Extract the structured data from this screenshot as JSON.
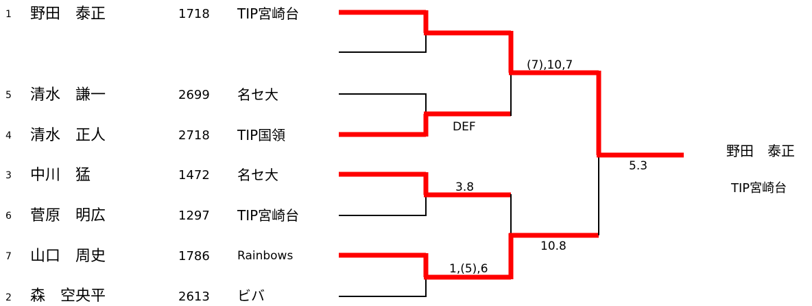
{
  "colors": {
    "win": "#ff0000",
    "line": "#000000"
  },
  "players": [
    {
      "seed": "1",
      "name": "野田　泰正",
      "rating": "1718",
      "team": "TIP宮崎台"
    },
    {
      "seed": "5",
      "name": "清水　謙一",
      "rating": "2699",
      "team": "名セ大"
    },
    {
      "seed": "4",
      "name": "清水　正人",
      "rating": "2718",
      "team": "TIP国領"
    },
    {
      "seed": "3",
      "name": "中川　猛",
      "rating": "1472",
      "team": "名セ大"
    },
    {
      "seed": "6",
      "name": "菅原　明広",
      "rating": "1297",
      "team": "TIP宮崎台"
    },
    {
      "seed": "7",
      "name": "山口　周史",
      "rating": "1786",
      "team": "Rainbows"
    },
    {
      "seed": "2",
      "name": "森　空央平",
      "rating": "2613",
      "team": "ビバ"
    }
  ],
  "scores": {
    "qf2": "DEF",
    "qf3": "3.8",
    "qf4": "1,(5),6",
    "sf1": "(7),10,7",
    "sf2": "10.8",
    "final": "5.3"
  },
  "champion": {
    "name": "野田　泰正",
    "team": "TIP宮崎台"
  }
}
